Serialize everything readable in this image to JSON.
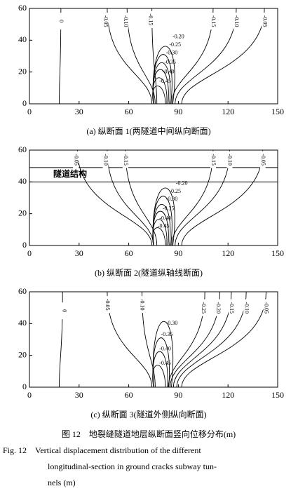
{
  "chart_data": [
    {
      "type": "contour",
      "caption": "(a)  纵断面 1(两隧道中间纵向断面)",
      "xlim": [
        0,
        150
      ],
      "ylim": [
        0,
        60
      ],
      "xticks": [
        0,
        30,
        60,
        90,
        120,
        150
      ],
      "yticks": [
        0,
        20,
        40,
        60
      ],
      "contours": [
        0,
        -0.05,
        {
          "value": -0.1,
          "label": "-0.10"
        },
        -0.15,
        {
          "value": -0.2,
          "label": "-0.20"
        },
        -0.25,
        {
          "value": -0.3,
          "label": "-0.30"
        },
        -0.35,
        {
          "value": -0.4,
          "label": "-0.40"
        },
        -0.45,
        -0.15,
        {
          "value": -0.1,
          "label": "-0.10"
        },
        -0.05
      ]
    },
    {
      "type": "contour",
      "caption": "(b)  纵断面 2(隧道纵轴线断面)",
      "xlim": [
        0,
        150
      ],
      "ylim": [
        0,
        60
      ],
      "xticks": [
        0,
        30,
        60,
        90,
        120,
        150
      ],
      "yticks": [
        0,
        20,
        40,
        60
      ],
      "tunnel": {
        "label": "隧道结构",
        "range": [
          40,
          49
        ]
      },
      "contours": [
        -0.05,
        {
          "value": -0.1,
          "label": "-0.10"
        },
        -0.15,
        {
          "value": -0.2,
          "label": "-0.20"
        },
        -0.25,
        {
          "value": -0.3,
          "label": "-0.30"
        },
        -0.35,
        {
          "value": -0.4,
          "label": "-0.40"
        },
        -0.45,
        -0.15,
        {
          "value": -0.1,
          "label": "-0.10"
        },
        -0.05
      ]
    },
    {
      "type": "contour",
      "caption": "(c)  纵断面 3(隧道外侧纵向断面)",
      "xlim": [
        0,
        150
      ],
      "ylim": [
        0,
        60
      ],
      "xticks": [
        0,
        30,
        60,
        90,
        120,
        150
      ],
      "yticks": [
        0,
        20,
        40,
        60
      ],
      "contours": [
        0,
        -0.05,
        {
          "value": -0.1,
          "label": "-0.10"
        },
        {
          "value": -0.3,
          "label": "-0.30"
        },
        -0.35,
        {
          "value": -0.4,
          "label": "-0.40"
        },
        -0.45,
        -0.25,
        {
          "value": -0.2,
          "label": "-0.20"
        },
        -0.15,
        {
          "value": -0.1,
          "label": "-0.10"
        },
        -0.05
      ]
    }
  ],
  "figure": {
    "caption_cn": "图 12　地裂缝隧道地层纵断面竖向位移分布(m)",
    "caption_en": [
      "Fig. 12　Vertical displacement distribution of the different",
      "longitudinal-section in ground cracks subway tun-",
      "nels (m)"
    ]
  }
}
